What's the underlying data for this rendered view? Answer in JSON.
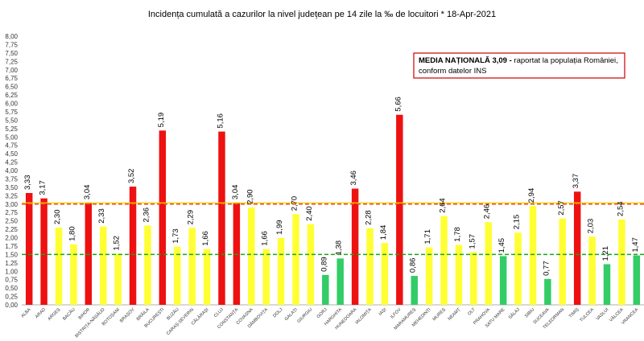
{
  "chart_data": {
    "type": "bar",
    "title": "Incidența cumulată a cazurilor la nivel județean pe 14 zile   la ‰ de locuitori  *  18-Apr-2021",
    "ylim": [
      0,
      8
    ],
    "ytick_step": 0.25,
    "ytick_labels": [
      "0,00",
      "0,25",
      "0,50",
      "0,75",
      "1,00",
      "1,25",
      "1,50",
      "1,75",
      "2,00",
      "2,25",
      "2,50",
      "2,75",
      "3,00",
      "3,25",
      "3,50",
      "3,75",
      "4,00",
      "4,25",
      "4,50",
      "4,75",
      "5,00",
      "5,25",
      "5,50",
      "5,75",
      "6,00",
      "6,25",
      "6,50",
      "6,75",
      "7,00",
      "7,25",
      "7,50",
      "7,75",
      "8,00"
    ],
    "categories": [
      "ALBA",
      "ARAD",
      "ARGEȘ",
      "BACĂU",
      "BIHOR",
      "BISTRIȚA-NĂSĂUD",
      "BOTOȘANI",
      "BRAȘOV",
      "BRĂILA",
      "BUCUREȘTI",
      "BUZĂU",
      "CARAȘ-SEVERIN",
      "CĂLĂRAȘI",
      "CLUJ",
      "CONSTANȚA",
      "COVASNA",
      "DÂMBOVIȚA",
      "DOLJ",
      "GALAȚI",
      "GIURGIU",
      "GORJ",
      "HARGHITA",
      "HUNEDOARA",
      "IALOMIȚA",
      "IAȘI",
      "ILFOV",
      "MARAMUREȘ",
      "MEHEDINȚI",
      "MUREȘ",
      "NEAMȚ",
      "OLT",
      "PRAHOVA",
      "SATU MARE",
      "SĂLAJ",
      "SIBIU",
      "SUCEAVA",
      "TELEORMAN",
      "TIMIȘ",
      "TULCEA",
      "VASLUI",
      "VÂLCEA",
      "VRANCEA"
    ],
    "values": [
      3.33,
      3.17,
      2.3,
      1.8,
      3.04,
      2.33,
      1.52,
      3.52,
      2.36,
      5.19,
      1.73,
      2.29,
      1.66,
      5.16,
      3.04,
      2.9,
      1.66,
      1.99,
      2.7,
      2.4,
      0.89,
      1.38,
      3.46,
      2.28,
      1.84,
      5.66,
      0.86,
      1.71,
      2.64,
      1.78,
      1.57,
      2.46,
      1.45,
      2.15,
      2.94,
      0.77,
      2.57,
      3.37,
      2.03,
      1.21,
      2.54,
      1.47
    ],
    "value_labels": [
      "3,33",
      "3,17",
      "2,30",
      "1,80",
      "3,04",
      "2,33",
      "1,52",
      "3,52",
      "2,36",
      "5,19",
      "1,73",
      "2,29",
      "1,66",
      "5,16",
      "3,04",
      "2,90",
      "1,66",
      "1,99",
      "2,70",
      "2,40",
      "0,89",
      "1,38",
      "3,46",
      "2,28",
      "1,84",
      "5,66",
      "0,86",
      "1,71",
      "2,64",
      "1,78",
      "1,57",
      "2,46",
      "1,45",
      "2,15",
      "2,94",
      "0,77",
      "2,57",
      "3,37",
      "2,03",
      "1,21",
      "2,54",
      "1,47"
    ],
    "reference_lines": [
      {
        "value": 3.0,
        "color": "#e8491d",
        "style": "dashed"
      },
      {
        "value": 1.5,
        "color": "#1aa31a",
        "style": "dashed"
      }
    ],
    "colors": {
      "high": "#ee1111",
      "medium": "#ffff33",
      "low": "#33cc66",
      "yellow_line": "#f0d000"
    },
    "thresholds": {
      "high": 3.0,
      "low": 1.5
    },
    "annotation": {
      "bold": "MEDIA NAȚIONALĂ 3,09 - ",
      "line1": "raportat la populația României,",
      "line2": "conform datelor INS",
      "border_color": "#cc0000"
    },
    "grid": false,
    "legend": "none"
  }
}
